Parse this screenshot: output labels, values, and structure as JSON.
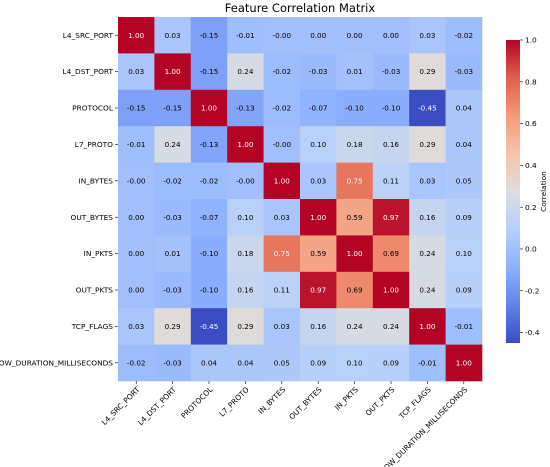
{
  "chart_data": {
    "type": "heatmap",
    "title": "Feature Correlation Matrix",
    "labels": [
      "L4_SRC_PORT",
      "L4_DST_PORT",
      "PROTOCOL",
      "L7_PROTO",
      "IN_BYTES",
      "OUT_BYTES",
      "IN_PKTS",
      "OUT_PKTS",
      "TCP_FLAGS",
      "FLOW_DURATION_MILLISECONDS"
    ],
    "cell_labels": [
      [
        "1.00",
        "0.03",
        "-0.15",
        "-0.01",
        "-0.00",
        "0.00",
        "0.00",
        "0.00",
        "0.03",
        "-0.02"
      ],
      [
        "0.03",
        "1.00",
        "-0.15",
        "0.24",
        "-0.02",
        "-0.03",
        "0.01",
        "-0.03",
        "0.29",
        "-0.03"
      ],
      [
        "-0.15",
        "-0.15",
        "1.00",
        "-0.13",
        "-0.02",
        "-0.07",
        "-0.10",
        "-0.10",
        "-0.45",
        "0.04"
      ],
      [
        "-0.01",
        "0.24",
        "-0.13",
        "1.00",
        "-0.00",
        "0.10",
        "0.18",
        "0.16",
        "0.29",
        "0.04"
      ],
      [
        "-0.00",
        "-0.02",
        "-0.02",
        "-0.00",
        "1.00",
        "0.03",
        "0.75",
        "0.11",
        "0.03",
        "0.05"
      ],
      [
        "0.00",
        "-0.03",
        "-0.07",
        "0.10",
        "0.03",
        "1.00",
        "0.59",
        "0.97",
        "0.16",
        "0.09"
      ],
      [
        "0.00",
        "0.01",
        "-0.10",
        "0.18",
        "0.75",
        "0.59",
        "1.00",
        "0.69",
        "0.24",
        "0.10"
      ],
      [
        "0.00",
        "-0.03",
        "-0.10",
        "0.16",
        "0.11",
        "0.97",
        "0.69",
        "1.00",
        "0.24",
        "0.09"
      ],
      [
        "0.03",
        "0.29",
        "-0.45",
        "0.29",
        "0.03",
        "0.16",
        "0.24",
        "0.24",
        "1.00",
        "-0.01"
      ],
      [
        "-0.02",
        "-0.03",
        "0.04",
        "0.04",
        "0.05",
        "0.09",
        "0.10",
        "0.09",
        "-0.01",
        "1.00"
      ]
    ],
    "colorbar": {
      "label": "Correlation",
      "range": [
        -0.45,
        1.0
      ],
      "ticks": [
        "-0.4",
        "-0.2",
        "0.0",
        "0.2",
        "0.4",
        "0.6",
        "0.8",
        "1.0"
      ],
      "colormap": "coolwarm"
    }
  }
}
